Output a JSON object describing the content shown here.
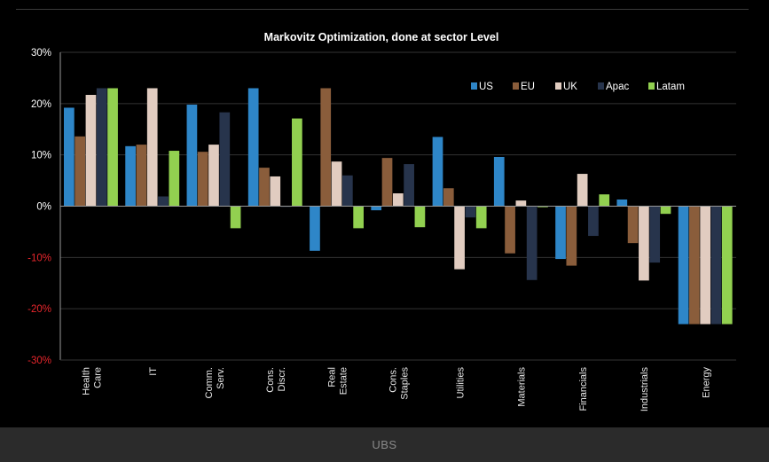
{
  "footer": {
    "label": "UBS"
  },
  "colors": {
    "background": "#000000",
    "gridline": "#333333",
    "axis": "#9a9a9a",
    "positive_tick": "#ffffff",
    "negative_tick": "#e8262c",
    "footer_bg": "#2b2b2b"
  },
  "chart_data": {
    "type": "bar",
    "title": "Markovitz Optimization, done at sector Level",
    "xlabel": "",
    "ylabel": "",
    "ylim": [
      -30,
      30
    ],
    "yticks": [
      30,
      20,
      10,
      0,
      -10,
      -20,
      -30
    ],
    "ytick_labels": [
      "30%",
      "20%",
      "10%",
      "0%",
      "-10%",
      "-20%",
      "-30%"
    ],
    "grid": true,
    "legend_position": "top-right",
    "categories": [
      [
        "Health",
        "Care"
      ],
      [
        "IT"
      ],
      [
        "Comm.",
        "Serv."
      ],
      [
        "Cons.",
        "Discr."
      ],
      [
        "Real",
        "Estate"
      ],
      [
        "Cons.",
        "Staples"
      ],
      [
        "Utilities"
      ],
      [
        "Materials"
      ],
      [
        "Financials"
      ],
      [
        "Industrials"
      ],
      [
        "Energy"
      ]
    ],
    "series": [
      {
        "name": "US",
        "color": "#2e86c8",
        "values": [
          19.2,
          11.7,
          19.8,
          23.0,
          -8.7,
          -0.8,
          13.5,
          9.6,
          -10.3,
          1.3,
          -23.0
        ]
      },
      {
        "name": "EU",
        "color": "#8a5d3b",
        "values": [
          13.6,
          12.0,
          10.6,
          7.5,
          23.0,
          9.4,
          3.5,
          -9.2,
          -11.6,
          -7.2,
          -23.0
        ]
      },
      {
        "name": "UK",
        "color": "#e1ccc0",
        "values": [
          21.7,
          23.0,
          12.0,
          5.8,
          8.7,
          2.5,
          -12.3,
          1.1,
          6.3,
          -14.5,
          -23.0
        ]
      },
      {
        "name": "Apac",
        "color": "#27344c",
        "values": [
          23.0,
          1.9,
          18.3,
          0.0,
          6.0,
          8.2,
          -2.2,
          -14.4,
          -5.8,
          -11.0,
          -23.0
        ]
      },
      {
        "name": "Latam",
        "color": "#92d050",
        "values": [
          23.0,
          10.8,
          -4.3,
          17.1,
          -4.3,
          -4.1,
          -4.3,
          -0.2,
          2.3,
          -1.5,
          -23.0
        ]
      }
    ]
  }
}
